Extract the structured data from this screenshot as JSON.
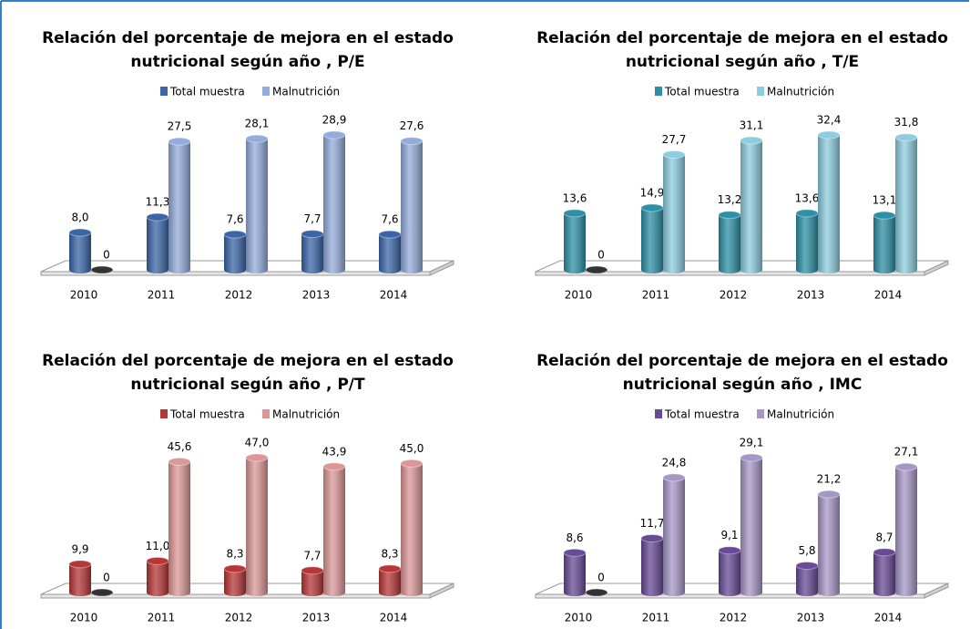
{
  "chart_data": [
    {
      "type": "bar3d",
      "title": [
        "Relación del porcentaje de mejora en el estado",
        "nutricional según año , P/E"
      ],
      "categories": [
        "2010",
        "2011",
        "2012",
        "2013",
        "2014"
      ],
      "series": [
        {
          "name": "Total muestra",
          "color": "#3a66a7",
          "values": [
            8.0,
            11.3,
            7.6,
            7.7,
            7.6
          ],
          "value_labels": [
            "8,0",
            "11,3",
            "7,6",
            "7,7",
            "7,6"
          ]
        },
        {
          "name": "Malnutrición",
          "color": "#94acdb",
          "values": [
            0,
            27.5,
            28.1,
            28.9,
            27.6
          ],
          "value_labels": [
            "0",
            "27,5",
            "28,1",
            "28,9",
            "27,6"
          ]
        }
      ]
    },
    {
      "type": "bar3d",
      "title": [
        "Relación del porcentaje de mejora en el estado",
        "nutricional según año , T/E"
      ],
      "categories": [
        "2010",
        "2011",
        "2012",
        "2013",
        "2014"
      ],
      "series": [
        {
          "name": "Total muestra",
          "color": "#2d90a6",
          "values": [
            13.6,
            14.9,
            13.2,
            13.6,
            13.1
          ],
          "value_labels": [
            "13,6",
            "14,9",
            "13,2",
            "13,6",
            "13,1"
          ]
        },
        {
          "name": "Malnutrición",
          "color": "#8dcde0",
          "values": [
            0,
            27.7,
            31.1,
            32.4,
            31.8
          ],
          "value_labels": [
            "0",
            "27,7",
            "31,1",
            "32,4",
            "31,8"
          ]
        }
      ]
    },
    {
      "type": "bar3d",
      "title": [
        "Relación del porcentaje de mejora en el estado",
        "nutricional según año , P/T"
      ],
      "categories": [
        "2010",
        "2011",
        "2012",
        "2013",
        "2014"
      ],
      "series": [
        {
          "name": "Total muestra",
          "color": "#b83636",
          "values": [
            9.9,
            11.0,
            8.3,
            7.7,
            8.3
          ],
          "value_labels": [
            "9,9",
            "11,0",
            "8,3",
            "7,7",
            "8,3"
          ]
        },
        {
          "name": "Malnutrición",
          "color": "#dc9797",
          "values": [
            0,
            45.6,
            47.0,
            43.9,
            45.0
          ],
          "value_labels": [
            "0",
            "45,6",
            "47,0",
            "43,9",
            "45,0"
          ]
        }
      ]
    },
    {
      "type": "bar3d",
      "title": [
        "Relación del porcentaje de mejora en el estado",
        "nutricional según año , IMC"
      ],
      "categories": [
        "2010",
        "2011",
        "2012",
        "2013",
        "2014"
      ],
      "series": [
        {
          "name": "Total muestra",
          "color": "#684a96",
          "values": [
            8.6,
            11.7,
            9.1,
            5.8,
            8.7
          ],
          "value_labels": [
            "8,6",
            "11,7",
            "9,1",
            "5,8",
            "8,7"
          ]
        },
        {
          "name": "Malnutrición",
          "color": "#a797c7",
          "values": [
            0,
            24.8,
            29.1,
            21.2,
            27.1
          ],
          "value_labels": [
            "0",
            "24,8",
            "29,1",
            "21,2",
            "27,1"
          ]
        }
      ]
    }
  ]
}
